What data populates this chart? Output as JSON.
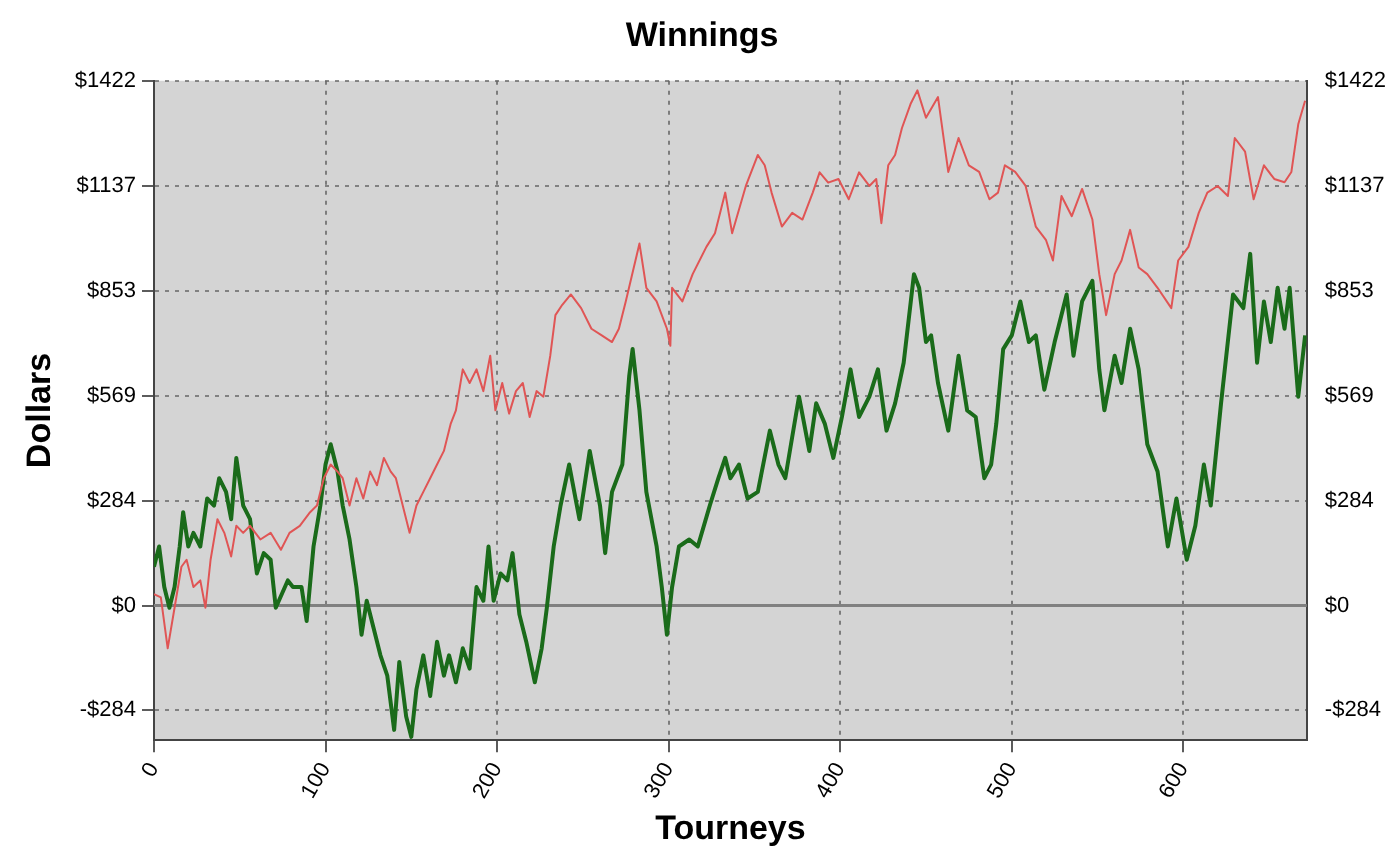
{
  "chart_data": {
    "type": "line",
    "title": "Winnings",
    "xlabel": "Tourneys",
    "ylabel": "Dollars",
    "xlim": [
      0,
      672
    ],
    "xticks": [
      0,
      100,
      200,
      300,
      400,
      500,
      600
    ],
    "ylim": [
      -365,
      1422
    ],
    "yticks": [
      {
        "value": -284,
        "label": "-$284"
      },
      {
        "value": 0,
        "label": "$0"
      },
      {
        "value": 284,
        "label": "$284"
      },
      {
        "value": 569,
        "label": "$569"
      },
      {
        "value": 853,
        "label": "$853"
      },
      {
        "value": 1137,
        "label": "$1137"
      },
      {
        "value": 1422,
        "label": "$1422"
      }
    ],
    "y2lim": [
      -365,
      1422
    ],
    "y2ticks": [
      {
        "value": -284,
        "label": "-$284"
      },
      {
        "value": 0,
        "label": "$0"
      },
      {
        "value": 284,
        "label": "$284"
      },
      {
        "value": 569,
        "label": "$569"
      },
      {
        "value": 853,
        "label": "$853"
      },
      {
        "value": 1137,
        "label": "$1137"
      },
      {
        "value": 1422,
        "label": "$1422"
      }
    ],
    "grid": true,
    "legend": false,
    "marker": "none",
    "line_style": "solid",
    "ref_lines": [
      {
        "axis": "y",
        "value": 0,
        "color": "#808080"
      }
    ],
    "series": [
      {
        "color": "#e05555",
        "x": [
          0,
          4,
          8,
          12,
          16,
          19,
          23,
          27,
          30,
          33,
          37,
          41,
          45,
          48,
          52,
          56,
          62,
          68,
          74,
          79,
          85,
          91,
          95,
          99,
          103,
          107,
          110,
          114,
          118,
          122,
          126,
          130,
          134,
          138,
          141,
          145,
          149,
          153,
          157,
          161,
          165,
          169,
          173,
          176,
          180,
          184,
          188,
          192,
          196,
          199,
          203,
          207,
          211,
          215,
          219,
          223,
          227,
          231,
          234,
          238,
          243,
          249,
          255,
          261,
          267,
          271,
          275,
          283,
          287,
          293,
          299,
          301,
          302,
          308,
          314,
          322,
          327,
          333,
          337,
          345,
          352,
          356,
          360,
          366,
          372,
          378,
          384,
          388,
          393,
          399,
          405,
          411,
          417,
          421,
          424,
          428,
          432,
          436,
          441,
          445,
          450,
          457,
          463,
          469,
          475,
          481,
          487,
          492,
          496,
          502,
          508,
          514,
          520,
          524,
          529,
          535,
          541,
          547,
          551,
          555,
          560,
          564,
          569,
          574,
          579,
          585,
          593,
          597,
          603,
          609,
          614,
          620,
          626,
          630,
          636,
          641,
          647,
          653,
          659,
          663,
          667,
          671
        ],
        "values": [
          31,
          22,
          -116,
          -6,
          105,
          124,
          50,
          68,
          -6,
          124,
          234,
          197,
          133,
          216,
          197,
          216,
          179,
          197,
          151,
          197,
          216,
          253,
          271,
          345,
          382,
          363,
          345,
          271,
          345,
          290,
          363,
          326,
          400,
          363,
          345,
          271,
          197,
          271,
          308,
          345,
          382,
          419,
          493,
          529,
          640,
          603,
          640,
          581,
          677,
          529,
          603,
          520,
          581,
          603,
          511,
          581,
          566,
          677,
          787,
          815,
          843,
          806,
          750,
          732,
          714,
          750,
          824,
          981,
          861,
          824,
          750,
          704,
          861,
          824,
          898,
          972,
          1009,
          1119,
          1009,
          1137,
          1221,
          1193,
          1119,
          1027,
          1064,
          1046,
          1119,
          1174,
          1146,
          1156,
          1101,
          1174,
          1137,
          1156,
          1036,
          1193,
          1221,
          1294,
          1359,
          1396,
          1322,
          1378,
          1175,
          1267,
          1193,
          1175,
          1101,
          1119,
          1193,
          1175,
          1138,
          1027,
          990,
          935,
          1110,
          1055,
          1129,
          1046,
          898,
          787,
          898,
          935,
          1018,
          916,
          898,
          861,
          806,
          935,
          972,
          1064,
          1119,
          1137,
          1110,
          1267,
          1230,
          1101,
          1193,
          1156,
          1147,
          1175,
          1304,
          1368
        ]
      },
      {
        "color": "#1a6b1a",
        "x": [
          0,
          3,
          6,
          9,
          12,
          15,
          17,
          20,
          23,
          27,
          31,
          35,
          38,
          42,
          45,
          48,
          52,
          56,
          60,
          64,
          68,
          71,
          78,
          81,
          86,
          89,
          93,
          97,
          100,
          103,
          107,
          110,
          114,
          118,
          121,
          124,
          128,
          132,
          136,
          140,
          143,
          147,
          150,
          153,
          157,
          161,
          165,
          169,
          172,
          176,
          180,
          184,
          188,
          192,
          195,
          198,
          202,
          206,
          209,
          213,
          217,
          222,
          226,
          229,
          233,
          237,
          242,
          248,
          254,
          260,
          263,
          267,
          273,
          277,
          279,
          283,
          287,
          293,
          296,
          299,
          302,
          306,
          312,
          317,
          324,
          329,
          333,
          336,
          341,
          346,
          352,
          359,
          364,
          368,
          372,
          376,
          382,
          386,
          391,
          396,
          401,
          406,
          411,
          417,
          422,
          427,
          432,
          437,
          443,
          446,
          450,
          453,
          457,
          463,
          469,
          474,
          479,
          484,
          488,
          491,
          495,
          500,
          505,
          510,
          514,
          519,
          525,
          532,
          536,
          541,
          547,
          551,
          554,
          560,
          564,
          569,
          574,
          579,
          585,
          591,
          596,
          602,
          607,
          612,
          616,
          622,
          629,
          635,
          639,
          643,
          647,
          651,
          655,
          659,
          662,
          667,
          671
        ],
        "values": [
          105,
          160,
          50,
          -6,
          50,
          160,
          253,
          160,
          197,
          160,
          290,
          271,
          345,
          308,
          234,
          400,
          271,
          234,
          87,
          142,
          124,
          -6,
          68,
          50,
          50,
          -42,
          160,
          271,
          382,
          437,
          363,
          271,
          179,
          50,
          -79,
          13,
          -61,
          -135,
          -190,
          -337,
          -153,
          -301,
          -356,
          -227,
          -135,
          -245,
          -98,
          -190,
          -135,
          -208,
          -116,
          -171,
          50,
          13,
          160,
          13,
          87,
          68,
          142,
          -24,
          -98,
          -208,
          -116,
          -6,
          160,
          271,
          382,
          234,
          419,
          271,
          142,
          308,
          382,
          621,
          695,
          529,
          308,
          160,
          50,
          -79,
          50,
          160,
          179,
          160,
          271,
          345,
          400,
          345,
          382,
          290,
          308,
          474,
          382,
          345,
          456,
          566,
          419,
          548,
          493,
          400,
          511,
          640,
          511,
          566,
          640,
          474,
          548,
          658,
          898,
          861,
          714,
          732,
          603,
          474,
          677,
          529,
          511,
          345,
          382,
          493,
          695,
          732,
          824,
          714,
          732,
          585,
          714,
          843,
          677,
          824,
          880,
          640,
          529,
          677,
          603,
          750,
          640,
          437,
          363,
          160,
          290,
          124,
          216,
          382,
          271,
          548,
          843,
          806,
          953,
          658,
          824,
          714,
          861,
          750,
          861,
          566,
          732
        ]
      }
    ]
  }
}
